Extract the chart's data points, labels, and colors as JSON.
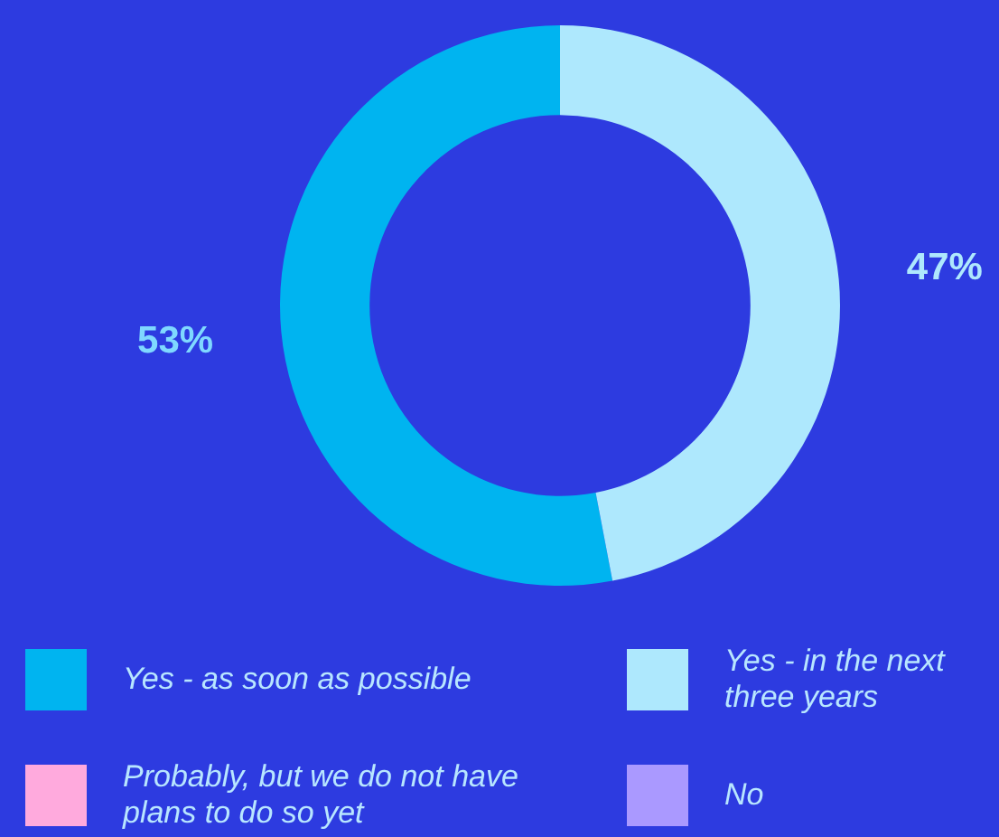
{
  "chart_data": {
    "type": "donut",
    "categories": [
      "Yes - as soon as possible",
      "Yes - in the next three years",
      "Probably, but we do not have plans to do so yet",
      "No"
    ],
    "values": [
      53,
      47,
      0,
      0
    ],
    "colors": [
      "#00b4f0",
      "#aee8fd",
      "#ffaadd",
      "#aa99ff"
    ],
    "value_labels": [
      "53%",
      "47%",
      null,
      null
    ],
    "legend": "bottom"
  }
}
